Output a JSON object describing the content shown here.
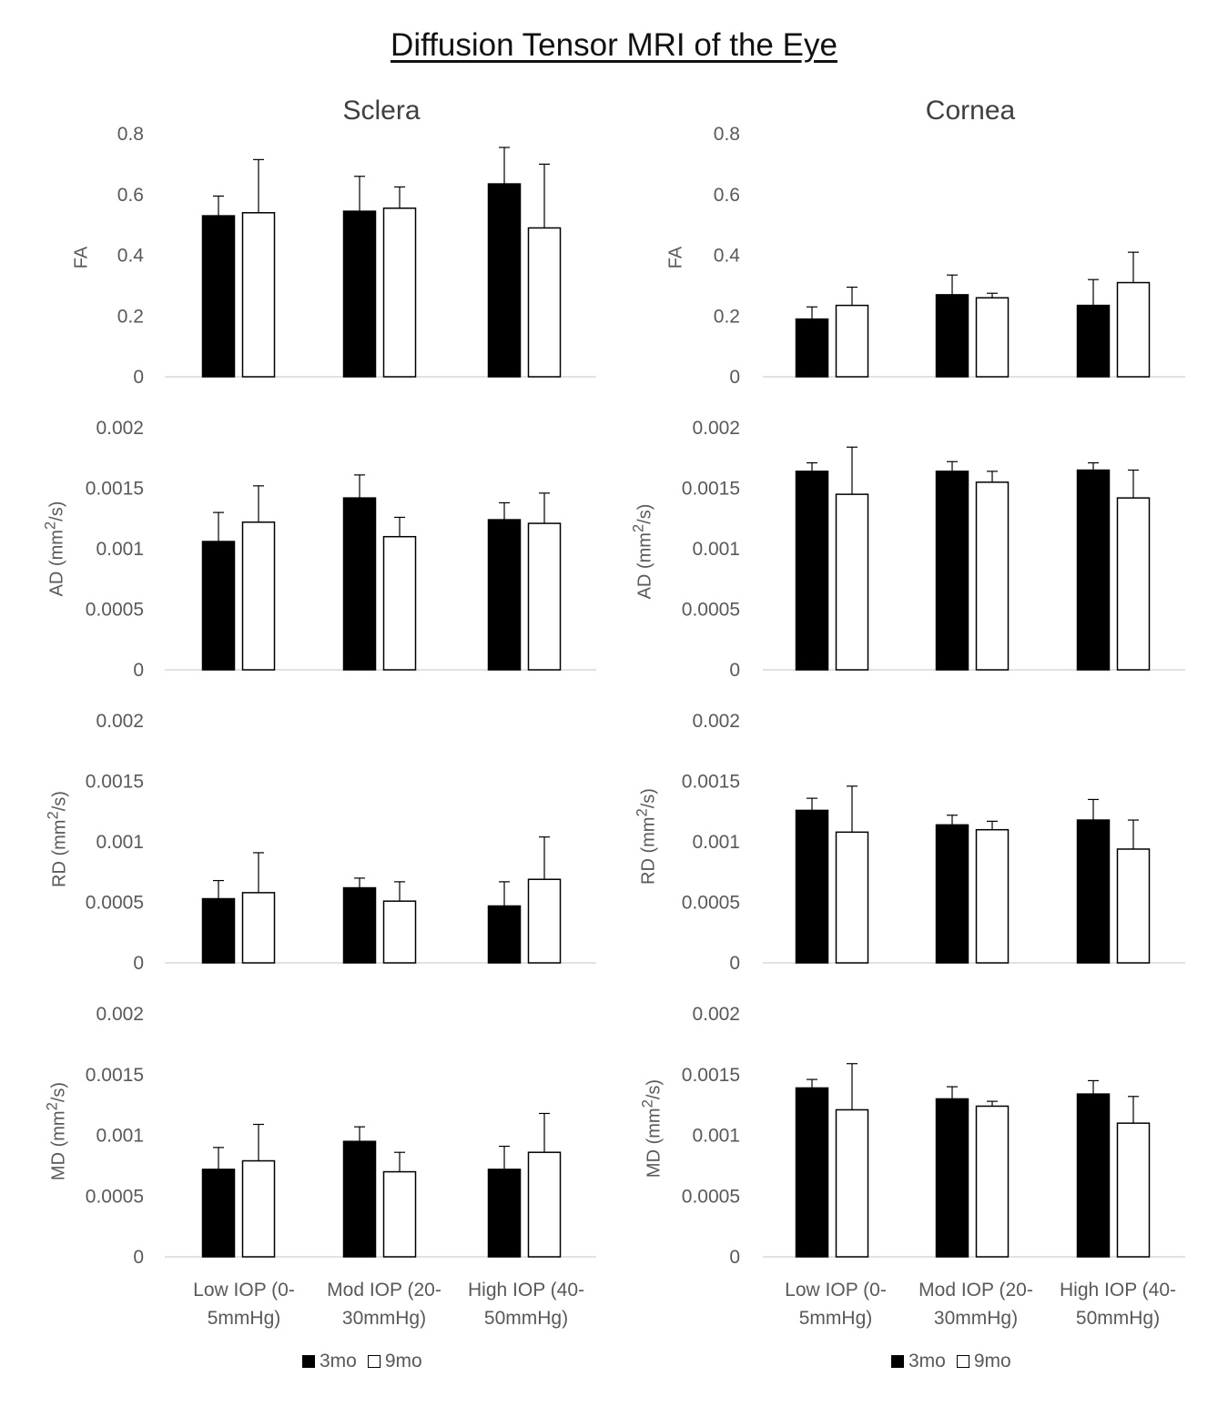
{
  "title": "Diffusion Tensor MRI of the Eye",
  "chart_data": [
    {
      "type": "bar",
      "panel": "Sclera",
      "metric": "FA",
      "title": "Sclera",
      "ylabel": "FA",
      "ylim": [
        0,
        0.8
      ],
      "yticks": [
        "0",
        "0.2",
        "0.4",
        "0.6",
        "0.8"
      ],
      "categories": [
        "Low IOP (0-5mmHg)",
        "Mod IOP (20-30mmHg)",
        "High IOP (40-50mmHg)"
      ],
      "series": [
        {
          "name": "3mo",
          "values": [
            0.53,
            0.545,
            0.635
          ],
          "errors": [
            0.065,
            0.115,
            0.12
          ]
        },
        {
          "name": "9mo",
          "values": [
            0.54,
            0.555,
            0.49
          ],
          "errors": [
            0.175,
            0.07,
            0.21
          ]
        }
      ]
    },
    {
      "type": "bar",
      "panel": "Cornea",
      "metric": "FA",
      "title": "Cornea",
      "ylabel": "FA",
      "ylim": [
        0,
        0.8
      ],
      "yticks": [
        "0",
        "0.2",
        "0.4",
        "0.6",
        "0.8"
      ],
      "categories": [
        "Low IOP (0-5mmHg)",
        "Mod IOP (20-30mmHg)",
        "High IOP (40-50mmHg)"
      ],
      "series": [
        {
          "name": "3mo",
          "values": [
            0.19,
            0.27,
            0.235
          ],
          "errors": [
            0.04,
            0.065,
            0.085
          ]
        },
        {
          "name": "9mo",
          "values": [
            0.235,
            0.26,
            0.31
          ],
          "errors": [
            0.06,
            0.015,
            0.1
          ]
        }
      ]
    },
    {
      "type": "bar",
      "panel": "Sclera",
      "metric": "AD",
      "ylabel": "AD (mm2/s)",
      "ylim": [
        0,
        0.002
      ],
      "yticks": [
        "0",
        "0.0005",
        "0.001",
        "0.0015",
        "0.002"
      ],
      "categories": [
        "Low IOP (0-5mmHg)",
        "Mod IOP (20-30mmHg)",
        "High IOP (40-50mmHg)"
      ],
      "series": [
        {
          "name": "3mo",
          "values": [
            0.00106,
            0.00142,
            0.00124
          ],
          "errors": [
            0.00024,
            0.00019,
            0.00014
          ]
        },
        {
          "name": "9mo",
          "values": [
            0.00122,
            0.0011,
            0.00121
          ],
          "errors": [
            0.0003,
            0.00016,
            0.00025
          ]
        }
      ]
    },
    {
      "type": "bar",
      "panel": "Cornea",
      "metric": "AD",
      "ylabel": "AD (mm2/s)",
      "ylim": [
        0,
        0.002
      ],
      "yticks": [
        "0",
        "0.0005",
        "0.001",
        "0.0015",
        "0.002"
      ],
      "categories": [
        "Low IOP (0-5mmHg)",
        "Mod IOP (20-30mmHg)",
        "High IOP (40-50mmHg)"
      ],
      "series": [
        {
          "name": "3mo",
          "values": [
            0.00164,
            0.00164,
            0.00165
          ],
          "errors": [
            7e-05,
            8e-05,
            6e-05
          ]
        },
        {
          "name": "9mo",
          "values": [
            0.00145,
            0.00155,
            0.00142
          ],
          "errors": [
            0.00039,
            9e-05,
            0.00023
          ]
        }
      ]
    },
    {
      "type": "bar",
      "panel": "Sclera",
      "metric": "RD",
      "ylabel": "RD (mm2/s)",
      "ylim": [
        0,
        0.002
      ],
      "yticks": [
        "0",
        "0.0005",
        "0.001",
        "0.0015",
        "0.002"
      ],
      "categories": [
        "Low IOP (0-5mmHg)",
        "Mod IOP (20-30mmHg)",
        "High IOP (40-50mmHg)"
      ],
      "series": [
        {
          "name": "3mo",
          "values": [
            0.00053,
            0.00062,
            0.00047
          ],
          "errors": [
            0.00015,
            8e-05,
            0.0002
          ]
        },
        {
          "name": "9mo",
          "values": [
            0.00058,
            0.00051,
            0.00069
          ],
          "errors": [
            0.00033,
            0.00016,
            0.00035
          ]
        }
      ]
    },
    {
      "type": "bar",
      "panel": "Cornea",
      "metric": "RD",
      "ylabel": "RD (mm2/s)",
      "ylim": [
        0,
        0.002
      ],
      "yticks": [
        "0",
        "0.0005",
        "0.001",
        "0.0015",
        "0.002"
      ],
      "categories": [
        "Low IOP (0-5mmHg)",
        "Mod IOP (20-30mmHg)",
        "High IOP (40-50mmHg)"
      ],
      "series": [
        {
          "name": "3mo",
          "values": [
            0.00126,
            0.00114,
            0.00118
          ],
          "errors": [
            0.0001,
            8e-05,
            0.00017
          ]
        },
        {
          "name": "9mo",
          "values": [
            0.00108,
            0.0011,
            0.00094
          ],
          "errors": [
            0.00038,
            7e-05,
            0.00024
          ]
        }
      ]
    },
    {
      "type": "bar",
      "panel": "Sclera",
      "metric": "MD",
      "ylabel": "MD (mm2/s)",
      "ylim": [
        0,
        0.002
      ],
      "yticks": [
        "0",
        "0.0005",
        "0.001",
        "0.0015",
        "0.002"
      ],
      "categories": [
        "Low IOP (0-5mmHg)",
        "Mod IOP (20-30mmHg)",
        "High IOP (40-50mmHg)"
      ],
      "series": [
        {
          "name": "3mo",
          "values": [
            0.00072,
            0.00095,
            0.00072
          ],
          "errors": [
            0.00018,
            0.00012,
            0.00019
          ]
        },
        {
          "name": "9mo",
          "values": [
            0.00079,
            0.0007,
            0.00086
          ],
          "errors": [
            0.0003,
            0.00016,
            0.00032
          ]
        }
      ]
    },
    {
      "type": "bar",
      "panel": "Cornea",
      "metric": "MD",
      "ylabel": "MD (mm2/s)",
      "ylim": [
        0,
        0.002
      ],
      "yticks": [
        "0",
        "0.0005",
        "0.001",
        "0.0015",
        "0.002"
      ],
      "categories": [
        "Low IOP (0-5mmHg)",
        "Mod IOP (20-30mmHg)",
        "High IOP (40-50mmHg)"
      ],
      "series": [
        {
          "name": "3mo",
          "values": [
            0.00139,
            0.0013,
            0.00134
          ],
          "errors": [
            7e-05,
            0.0001,
            0.00011
          ]
        },
        {
          "name": "9mo",
          "values": [
            0.00121,
            0.00124,
            0.0011
          ],
          "errors": [
            0.00038,
            4e-05,
            0.00022
          ]
        }
      ]
    }
  ],
  "columns": {
    "left": "Sclera",
    "right": "Cornea"
  },
  "ylabels": {
    "fa": "FA",
    "ad": {
      "prefix": "AD (mm",
      "sup": "2",
      "suffix": "/s)"
    },
    "rd": {
      "prefix": "RD (mm",
      "sup": "2",
      "suffix": "/s)"
    },
    "md": {
      "prefix": "MD (mm",
      "sup": "2",
      "suffix": "/s)"
    }
  },
  "categories": [
    {
      "line1": "Low IOP (0-",
      "line2": "5mmHg)"
    },
    {
      "line1": "Mod IOP (20-",
      "line2": "30mmHg)"
    },
    {
      "line1": "High IOP (40-",
      "line2": "50mmHg)"
    }
  ],
  "legend": {
    "series1": "3mo",
    "series2": "9mo"
  },
  "colors": {
    "series1": "#000000",
    "series2": "#ffffff",
    "axis": "#d9d9d9",
    "text": "#595959"
  }
}
